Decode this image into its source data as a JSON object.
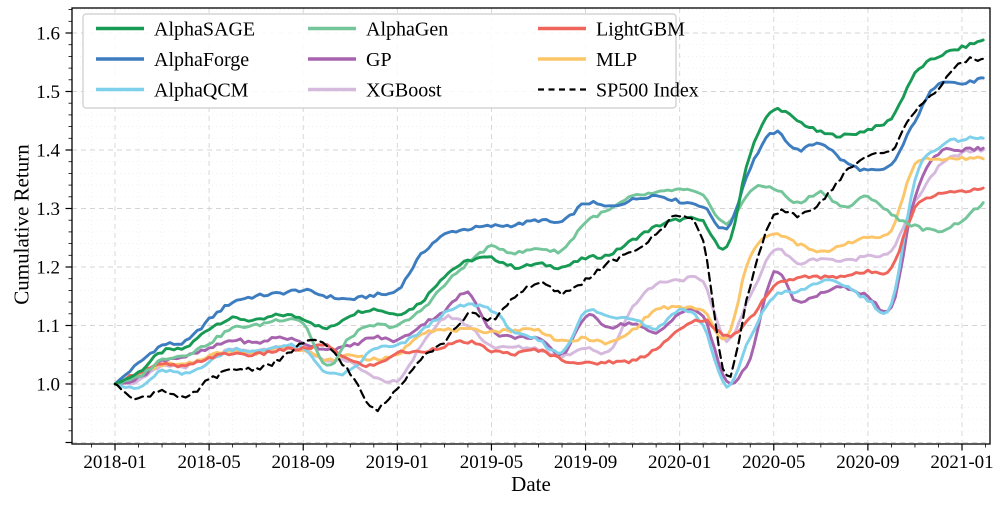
{
  "chart_data": {
    "type": "line",
    "title": "",
    "xlabel": "Date",
    "ylabel": "Cumulative Return",
    "x_tick_labels": [
      "2018-01",
      "2018-05",
      "2018-09",
      "2019-01",
      "2019-05",
      "2019-09",
      "2020-01",
      "2020-05",
      "2020-09",
      "2021-01"
    ],
    "x_months": [
      "2018-01",
      "2018-02",
      "2018-03",
      "2018-04",
      "2018-05",
      "2018-06",
      "2018-07",
      "2018-08",
      "2018-09",
      "2018-10",
      "2018-11",
      "2018-12",
      "2019-01",
      "2019-02",
      "2019-03",
      "2019-04",
      "2019-05",
      "2019-06",
      "2019-07",
      "2019-08",
      "2019-09",
      "2019-10",
      "2019-11",
      "2019-12",
      "2020-01",
      "2020-02",
      "2020-03",
      "2020-04",
      "2020-05",
      "2020-06",
      "2020-07",
      "2020-08",
      "2020-09",
      "2020-10",
      "2020-11",
      "2020-12",
      "2021-01"
    ],
    "x_index": [
      0,
      1,
      2,
      3,
      4,
      5,
      6,
      7,
      8,
      9,
      10,
      11,
      12,
      13,
      14,
      15,
      16,
      17,
      18,
      19,
      20,
      21,
      22,
      23,
      24,
      25,
      26,
      27,
      28,
      29,
      30,
      31,
      32,
      33,
      34,
      35,
      36,
      36.9
    ],
    "ylim": [
      0.895,
      1.645
    ],
    "yticks": [
      1.0,
      1.1,
      1.2,
      1.3,
      1.4,
      1.5,
      1.6
    ],
    "grid": true,
    "legend_position": "upper-left",
    "legend_columns": 3,
    "series": [
      {
        "name": "AlphaSAGE",
        "color": "#179a54",
        "dash": "solid",
        "values": [
          1.0,
          1.02,
          1.055,
          1.062,
          1.095,
          1.112,
          1.108,
          1.118,
          1.112,
          1.095,
          1.118,
          1.128,
          1.12,
          1.14,
          1.185,
          1.21,
          1.215,
          1.2,
          1.205,
          1.2,
          1.215,
          1.221,
          1.246,
          1.269,
          1.281,
          1.277,
          1.232,
          1.395,
          1.468,
          1.45,
          1.43,
          1.425,
          1.435,
          1.455,
          1.53,
          1.56,
          1.575,
          1.588
        ]
      },
      {
        "name": "AlphaForge",
        "color": "#3d7dbf",
        "dash": "solid",
        "values": [
          1.0,
          1.035,
          1.066,
          1.072,
          1.11,
          1.14,
          1.15,
          1.155,
          1.16,
          1.15,
          1.145,
          1.152,
          1.161,
          1.22,
          1.255,
          1.265,
          1.27,
          1.272,
          1.28,
          1.277,
          1.309,
          1.303,
          1.315,
          1.322,
          1.312,
          1.303,
          1.266,
          1.37,
          1.43,
          1.4,
          1.412,
          1.38,
          1.365,
          1.375,
          1.45,
          1.515,
          1.513,
          1.523
        ]
      },
      {
        "name": "AlphaQCM",
        "color": "#7fd0ea",
        "dash": "solid",
        "values": [
          1.0,
          0.993,
          1.022,
          1.017,
          1.038,
          1.06,
          1.055,
          1.065,
          1.06,
          1.02,
          1.022,
          1.06,
          1.065,
          1.09,
          1.12,
          1.135,
          1.127,
          1.088,
          1.075,
          1.055,
          1.123,
          1.115,
          1.113,
          1.095,
          1.127,
          1.1,
          0.995,
          1.08,
          1.15,
          1.157,
          1.175,
          1.169,
          1.144,
          1.135,
          1.35,
          1.405,
          1.418,
          1.42
        ]
      },
      {
        "name": "AlphaGen",
        "color": "#74c69a",
        "dash": "solid",
        "values": [
          1.0,
          1.012,
          1.042,
          1.05,
          1.07,
          1.095,
          1.1,
          1.11,
          1.104,
          1.03,
          1.08,
          1.1,
          1.1,
          1.126,
          1.169,
          1.207,
          1.234,
          1.224,
          1.232,
          1.229,
          1.277,
          1.297,
          1.32,
          1.326,
          1.332,
          1.32,
          1.274,
          1.33,
          1.335,
          1.309,
          1.328,
          1.302,
          1.32,
          1.29,
          1.27,
          1.262,
          1.28,
          1.31
        ]
      },
      {
        "name": "GP",
        "color": "#a763ae",
        "dash": "solid",
        "values": [
          1.0,
          1.01,
          1.04,
          1.047,
          1.06,
          1.075,
          1.07,
          1.08,
          1.07,
          1.06,
          1.065,
          1.08,
          1.075,
          1.1,
          1.125,
          1.155,
          1.092,
          1.08,
          1.078,
          1.05,
          1.115,
          1.098,
          1.104,
          1.087,
          1.121,
          1.115,
          1.005,
          1.046,
          1.19,
          1.14,
          1.155,
          1.165,
          1.15,
          1.13,
          1.32,
          1.395,
          1.4,
          1.403
        ]
      },
      {
        "name": "XGBoost",
        "color": "#d5bade",
        "dash": "solid",
        "values": [
          1.0,
          1.005,
          1.03,
          1.03,
          1.045,
          1.058,
          1.055,
          1.063,
          1.058,
          1.04,
          1.04,
          1.01,
          1.007,
          1.063,
          1.113,
          1.1,
          1.065,
          1.063,
          1.06,
          1.048,
          1.063,
          1.055,
          1.132,
          1.17,
          1.178,
          1.172,
          1.075,
          1.15,
          1.229,
          1.207,
          1.215,
          1.21,
          1.22,
          1.229,
          1.31,
          1.37,
          1.395,
          1.4
        ]
      },
      {
        "name": "LightGBM",
        "color": "#ef655c",
        "dash": "solid",
        "values": [
          1.0,
          1.02,
          1.033,
          1.03,
          1.045,
          1.052,
          1.05,
          1.058,
          1.06,
          1.065,
          1.04,
          1.032,
          1.053,
          1.055,
          1.065,
          1.072,
          1.057,
          1.052,
          1.058,
          1.042,
          1.035,
          1.038,
          1.04,
          1.061,
          1.092,
          1.11,
          1.081,
          1.113,
          1.166,
          1.181,
          1.183,
          1.185,
          1.192,
          1.2,
          1.3,
          1.325,
          1.33,
          1.335
        ]
      },
      {
        "name": "MLP",
        "color": "#fbc568",
        "dash": "solid",
        "values": [
          1.0,
          1.015,
          1.033,
          1.033,
          1.048,
          1.058,
          1.052,
          1.063,
          1.058,
          1.04,
          1.05,
          1.042,
          1.05,
          1.087,
          1.092,
          1.092,
          1.09,
          1.092,
          1.092,
          1.072,
          1.078,
          1.07,
          1.092,
          1.127,
          1.13,
          1.125,
          1.078,
          1.22,
          1.255,
          1.24,
          1.225,
          1.24,
          1.25,
          1.265,
          1.375,
          1.383,
          1.386,
          1.385
        ]
      },
      {
        "name": "SP500 Index",
        "color": "#000000",
        "dash": "dashed",
        "values": [
          1.0,
          0.975,
          0.99,
          0.975,
          1.007,
          1.024,
          1.027,
          1.041,
          1.07,
          1.065,
          1.018,
          0.957,
          0.993,
          1.045,
          1.072,
          1.118,
          1.11,
          1.15,
          1.172,
          1.155,
          1.178,
          1.207,
          1.226,
          1.255,
          1.29,
          1.241,
          1.012,
          1.17,
          1.286,
          1.289,
          1.31,
          1.36,
          1.39,
          1.4,
          1.468,
          1.505,
          1.55,
          1.556
        ]
      }
    ]
  }
}
